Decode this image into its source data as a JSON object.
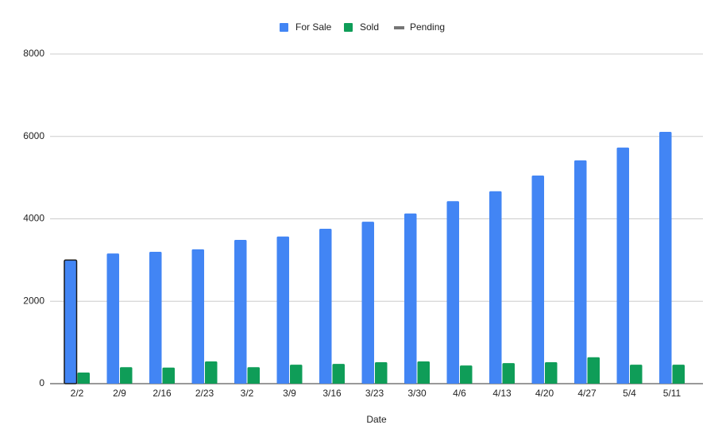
{
  "chart_data": {
    "type": "bar",
    "x_label": "Date",
    "categories": [
      "2/2",
      "2/9",
      "2/16",
      "2/23",
      "3/2",
      "3/9",
      "3/16",
      "3/23",
      "3/30",
      "4/6",
      "4/13",
      "4/20",
      "4/27",
      "5/4",
      "5/11"
    ],
    "series": [
      {
        "name": "For Sale",
        "color": "#4285f4",
        "values": [
          3000,
          3160,
          3200,
          3260,
          3490,
          3570,
          3760,
          3930,
          4130,
          4430,
          4670,
          5050,
          5420,
          5730,
          6110
        ]
      },
      {
        "name": "Sold",
        "color": "#0f9d58",
        "values": [
          270,
          400,
          390,
          540,
          400,
          460,
          480,
          520,
          540,
          440,
          500,
          520,
          640,
          460,
          460
        ]
      },
      {
        "name": "Pending",
        "type": "line",
        "color": "#757575",
        "values": [
          null,
          null,
          null,
          null,
          null,
          null,
          null,
          null,
          null,
          null,
          null,
          null,
          null,
          null,
          null
        ]
      }
    ],
    "ylim": [
      0,
      8000
    ],
    "yticks": [
      0,
      2000,
      4000,
      6000,
      8000
    ],
    "grid": true,
    "legend": "top"
  }
}
